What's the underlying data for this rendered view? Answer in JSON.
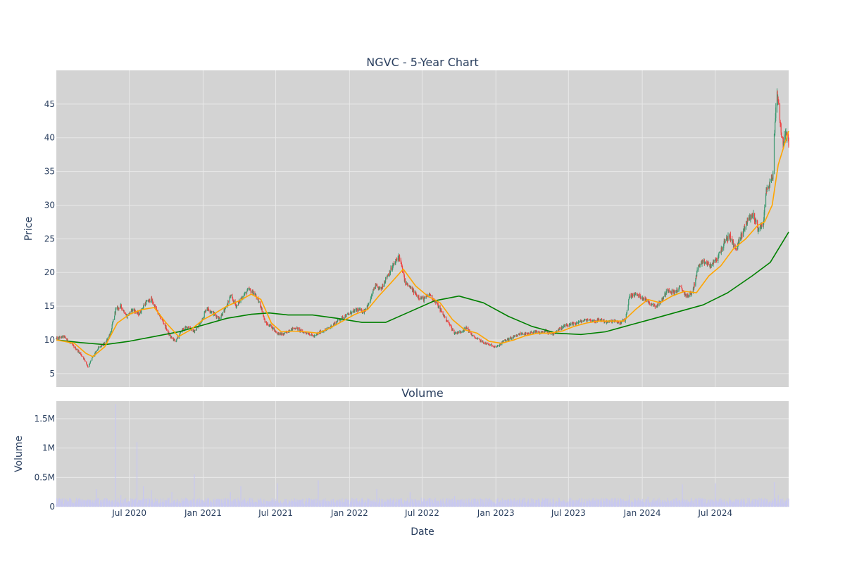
{
  "chart_data": [
    {
      "type": "candlestick",
      "title": "NGVC - 5-Year Chart",
      "ylabel": "Price",
      "ylim": [
        3,
        50
      ],
      "yticks": [
        5,
        10,
        15,
        20,
        25,
        30,
        35,
        40,
        45
      ],
      "yticklabels": [
        "5",
        "10",
        "15",
        "20",
        "25",
        "30",
        "35",
        "40",
        "45"
      ],
      "x_range": [
        "2020-01-01",
        "2024-12-31"
      ],
      "xticks": [
        "2020-07-01",
        "2021-01-01",
        "2021-07-01",
        "2022-01-01",
        "2022-07-01",
        "2023-01-01",
        "2023-07-01",
        "2024-01-01",
        "2024-07-01"
      ],
      "grid": true,
      "colors": {
        "background": "#d3d3d3",
        "grid": "#e8e8e8",
        "up": "#3d9970",
        "down": "#ef4444",
        "ma_short": "#ffa500",
        "ma_long": "#008000",
        "text": "#2a3f5f"
      },
      "price_path": [
        [
          "2020-01-01",
          10.2
        ],
        [
          "2020-01-20",
          10.5
        ],
        [
          "2020-02-10",
          9.2
        ],
        [
          "2020-02-25",
          8.3
        ],
        [
          "2020-03-10",
          7.2
        ],
        [
          "2020-03-20",
          6.0
        ],
        [
          "2020-04-01",
          7.5
        ],
        [
          "2020-04-15",
          8.8
        ],
        [
          "2020-05-01",
          9.5
        ],
        [
          "2020-05-15",
          11.0
        ],
        [
          "2020-05-28",
          14.5
        ],
        [
          "2020-06-10",
          15.0
        ],
        [
          "2020-06-25",
          13.5
        ],
        [
          "2020-07-10",
          14.5
        ],
        [
          "2020-07-25",
          13.8
        ],
        [
          "2020-08-10",
          15.5
        ],
        [
          "2020-08-25",
          16.0
        ],
        [
          "2020-09-10",
          14.0
        ],
        [
          "2020-09-25",
          12.5
        ],
        [
          "2020-10-10",
          10.5
        ],
        [
          "2020-10-25",
          9.8
        ],
        [
          "2020-11-10",
          11.5
        ],
        [
          "2020-11-25",
          12.0
        ],
        [
          "2020-12-10",
          11.2
        ],
        [
          "2020-12-25",
          12.5
        ],
        [
          "2021-01-10",
          14.8
        ],
        [
          "2021-01-25",
          14.0
        ],
        [
          "2021-02-10",
          13.2
        ],
        [
          "2021-02-25",
          14.5
        ],
        [
          "2021-03-10",
          16.5
        ],
        [
          "2021-03-25",
          15.0
        ],
        [
          "2021-04-10",
          16.5
        ],
        [
          "2021-04-25",
          17.5
        ],
        [
          "2021-05-10",
          16.8
        ],
        [
          "2021-05-25",
          15.0
        ],
        [
          "2021-06-05",
          12.5
        ],
        [
          "2021-06-20",
          12.0
        ],
        [
          "2021-07-05",
          11.0
        ],
        [
          "2021-07-20",
          10.8
        ],
        [
          "2021-08-05",
          11.5
        ],
        [
          "2021-08-20",
          11.8
        ],
        [
          "2021-09-05",
          11.2
        ],
        [
          "2021-09-20",
          11.0
        ],
        [
          "2021-10-05",
          10.5
        ],
        [
          "2021-10-20",
          11.2
        ],
        [
          "2021-11-05",
          11.5
        ],
        [
          "2021-11-20",
          12.2
        ],
        [
          "2021-12-05",
          13.0
        ],
        [
          "2021-12-20",
          13.5
        ],
        [
          "2022-01-05",
          14.0
        ],
        [
          "2022-01-20",
          14.5
        ],
        [
          "2022-02-05",
          14.2
        ],
        [
          "2022-02-20",
          15.5
        ],
        [
          "2022-03-05",
          18.0
        ],
        [
          "2022-03-20",
          17.5
        ],
        [
          "2022-04-05",
          19.5
        ],
        [
          "2022-04-20",
          21.0
        ],
        [
          "2022-05-05",
          22.5
        ],
        [
          "2022-05-20",
          18.5
        ],
        [
          "2022-06-05",
          17.5
        ],
        [
          "2022-06-20",
          16.5
        ],
        [
          "2022-07-05",
          16.0
        ],
        [
          "2022-07-20",
          16.8
        ],
        [
          "2022-08-05",
          15.5
        ],
        [
          "2022-08-20",
          14.0
        ],
        [
          "2022-09-05",
          12.5
        ],
        [
          "2022-09-20",
          11.0
        ],
        [
          "2022-10-05",
          11.2
        ],
        [
          "2022-10-20",
          11.8
        ],
        [
          "2022-11-05",
          10.5
        ],
        [
          "2022-11-20",
          10.0
        ],
        [
          "2022-12-05",
          9.5
        ],
        [
          "2022-12-20",
          9.2
        ],
        [
          "2023-01-05",
          9.0
        ],
        [
          "2023-01-20",
          9.8
        ],
        [
          "2023-02-05",
          10.2
        ],
        [
          "2023-02-20",
          10.5
        ],
        [
          "2023-03-05",
          11.0
        ],
        [
          "2023-03-20",
          10.8
        ],
        [
          "2023-04-05",
          11.2
        ],
        [
          "2023-04-20",
          11.0
        ],
        [
          "2023-05-05",
          11.3
        ],
        [
          "2023-05-20",
          10.8
        ],
        [
          "2023-06-05",
          11.5
        ],
        [
          "2023-06-20",
          12.0
        ],
        [
          "2023-07-05",
          12.2
        ],
        [
          "2023-07-20",
          12.5
        ],
        [
          "2023-08-05",
          12.8
        ],
        [
          "2023-08-20",
          13.0
        ],
        [
          "2023-09-05",
          12.8
        ],
        [
          "2023-09-20",
          13.0
        ],
        [
          "2023-10-05",
          12.6
        ],
        [
          "2023-10-20",
          12.8
        ],
        [
          "2023-11-05",
          12.5
        ],
        [
          "2023-11-20",
          13.0
        ],
        [
          "2023-11-30",
          16.5
        ],
        [
          "2023-12-15",
          16.8
        ],
        [
          "2024-01-05",
          16.2
        ],
        [
          "2024-01-20",
          15.5
        ],
        [
          "2024-02-05",
          15.0
        ],
        [
          "2024-02-20",
          16.0
        ],
        [
          "2024-03-05",
          17.5
        ],
        [
          "2024-03-20",
          17.0
        ],
        [
          "2024-04-05",
          17.8
        ],
        [
          "2024-04-20",
          16.5
        ],
        [
          "2024-05-05",
          17.0
        ],
        [
          "2024-05-20",
          21.0
        ],
        [
          "2024-06-05",
          21.5
        ],
        [
          "2024-06-20",
          21.0
        ],
        [
          "2024-07-05",
          22.0
        ],
        [
          "2024-07-20",
          24.0
        ],
        [
          "2024-08-05",
          25.5
        ],
        [
          "2024-08-20",
          23.5
        ],
        [
          "2024-09-05",
          25.5
        ],
        [
          "2024-09-20",
          28.0
        ],
        [
          "2024-10-05",
          28.5
        ],
        [
          "2024-10-15",
          26.5
        ],
        [
          "2024-10-28",
          27.0
        ],
        [
          "2024-11-05",
          32.0
        ],
        [
          "2024-11-15",
          33.5
        ],
        [
          "2024-11-22",
          34.5
        ],
        [
          "2024-11-25",
          40.0
        ],
        [
          "2024-12-01",
          47.0
        ],
        [
          "2024-12-08",
          44.0
        ],
        [
          "2024-12-15",
          39.0
        ],
        [
          "2024-12-22",
          40.5
        ],
        [
          "2024-12-31",
          39.5
        ]
      ],
      "ma_short": [
        [
          "2020-01-01",
          10.0
        ],
        [
          "2020-02-15",
          9.5
        ],
        [
          "2020-03-15",
          8.0
        ],
        [
          "2020-04-01",
          7.5
        ],
        [
          "2020-05-01",
          9.0
        ],
        [
          "2020-06-01",
          12.5
        ],
        [
          "2020-07-01",
          13.8
        ],
        [
          "2020-08-01",
          14.5
        ],
        [
          "2020-09-01",
          14.8
        ],
        [
          "2020-10-01",
          12.5
        ],
        [
          "2020-11-01",
          10.5
        ],
        [
          "2020-12-01",
          11.5
        ],
        [
          "2021-01-01",
          13.0
        ],
        [
          "2021-02-01",
          14.0
        ],
        [
          "2021-03-01",
          15.0
        ],
        [
          "2021-04-01",
          15.8
        ],
        [
          "2021-05-01",
          16.8
        ],
        [
          "2021-05-25",
          16.0
        ],
        [
          "2021-06-20",
          12.5
        ],
        [
          "2021-07-15",
          11.2
        ],
        [
          "2021-08-15",
          11.3
        ],
        [
          "2021-09-15",
          11.2
        ],
        [
          "2021-10-15",
          11.0
        ],
        [
          "2021-11-15",
          11.8
        ],
        [
          "2021-12-15",
          12.8
        ],
        [
          "2022-01-15",
          13.8
        ],
        [
          "2022-02-15",
          14.5
        ],
        [
          "2022-03-15",
          16.5
        ],
        [
          "2022-04-15",
          18.5
        ],
        [
          "2022-05-15",
          20.5
        ],
        [
          "2022-06-15",
          18.0
        ],
        [
          "2022-07-15",
          16.5
        ],
        [
          "2022-08-15",
          15.5
        ],
        [
          "2022-09-15",
          13.0
        ],
        [
          "2022-10-15",
          11.5
        ],
        [
          "2022-11-15",
          11.0
        ],
        [
          "2022-12-15",
          9.8
        ],
        [
          "2023-01-15",
          9.5
        ],
        [
          "2023-02-15",
          10.0
        ],
        [
          "2023-03-15",
          10.6
        ],
        [
          "2023-04-15",
          11.0
        ],
        [
          "2023-05-15",
          11.0
        ],
        [
          "2023-06-15",
          11.3
        ],
        [
          "2023-07-15",
          12.0
        ],
        [
          "2023-08-15",
          12.5
        ],
        [
          "2023-09-15",
          12.8
        ],
        [
          "2023-10-15",
          12.8
        ],
        [
          "2023-11-15",
          12.8
        ],
        [
          "2023-12-15",
          14.5
        ],
        [
          "2024-01-15",
          16.0
        ],
        [
          "2024-02-15",
          15.5
        ],
        [
          "2024-03-15",
          16.5
        ],
        [
          "2024-04-15",
          17.2
        ],
        [
          "2024-05-15",
          17.0
        ],
        [
          "2024-06-15",
          19.5
        ],
        [
          "2024-07-15",
          21.0
        ],
        [
          "2024-08-15",
          23.5
        ],
        [
          "2024-09-15",
          25.0
        ],
        [
          "2024-10-15",
          27.0
        ],
        [
          "2024-11-01",
          27.5
        ],
        [
          "2024-11-20",
          30.0
        ],
        [
          "2024-12-05",
          36.0
        ],
        [
          "2024-12-31",
          41.0
        ]
      ],
      "ma_long": [
        [
          "2020-01-01",
          10.0
        ],
        [
          "2020-03-01",
          9.6
        ],
        [
          "2020-05-01",
          9.3
        ],
        [
          "2020-07-01",
          9.8
        ],
        [
          "2020-09-01",
          10.5
        ],
        [
          "2020-11-01",
          11.2
        ],
        [
          "2021-01-01",
          12.2
        ],
        [
          "2021-03-01",
          13.2
        ],
        [
          "2021-05-01",
          13.8
        ],
        [
          "2021-06-15",
          14.0
        ],
        [
          "2021-08-01",
          13.7
        ],
        [
          "2021-10-01",
          13.7
        ],
        [
          "2021-12-01",
          13.2
        ],
        [
          "2022-02-01",
          12.6
        ],
        [
          "2022-04-01",
          12.6
        ],
        [
          "2022-06-01",
          14.2
        ],
        [
          "2022-08-01",
          15.8
        ],
        [
          "2022-10-01",
          16.5
        ],
        [
          "2022-12-01",
          15.5
        ],
        [
          "2023-02-01",
          13.5
        ],
        [
          "2023-04-01",
          12.0
        ],
        [
          "2023-06-01",
          11.0
        ],
        [
          "2023-08-01",
          10.8
        ],
        [
          "2023-10-01",
          11.2
        ],
        [
          "2023-12-01",
          12.2
        ],
        [
          "2024-02-01",
          13.2
        ],
        [
          "2024-04-01",
          14.2
        ],
        [
          "2024-06-01",
          15.2
        ],
        [
          "2024-08-01",
          17.0
        ],
        [
          "2024-10-01",
          19.5
        ],
        [
          "2024-11-15",
          21.5
        ],
        [
          "2024-12-31",
          26.0
        ]
      ]
    },
    {
      "type": "bar",
      "title": "Volume",
      "xlabel": "Date",
      "ylabel": "Volume",
      "ylim": [
        0,
        1800000
      ],
      "yticks": [
        0,
        500000,
        1000000,
        1500000
      ],
      "yticklabels": [
        "0",
        "0.5M",
        "1M",
        "1.5M"
      ],
      "x_range": [
        "2020-01-01",
        "2024-12-31"
      ],
      "xticks": [
        "2020-07-01",
        "2021-01-01",
        "2021-07-01",
        "2022-01-01",
        "2022-07-01",
        "2023-01-01",
        "2023-07-01",
        "2024-01-01",
        "2024-07-01"
      ],
      "xticklabels": [
        "Jul 2020",
        "Jan 2021",
        "Jul 2021",
        "Jan 2022",
        "Jul 2022",
        "Jan 2023",
        "Jul 2023",
        "Jan 2024",
        "Jul 2024"
      ],
      "grid": true,
      "colors": {
        "background": "#d3d3d3",
        "grid": "#e8e8e8",
        "bar": "#c8c8f0",
        "text": "#2a3f5f"
      },
      "baseline_volume": 100000,
      "spikes": [
        [
          "2020-02-20",
          150000
        ],
        [
          "2020-03-15",
          180000
        ],
        [
          "2020-04-10",
          300000
        ],
        [
          "2020-05-28",
          1750000
        ],
        [
          "2020-06-10",
          200000
        ],
        [
          "2020-07-20",
          1100000
        ],
        [
          "2020-08-05",
          350000
        ],
        [
          "2020-08-25",
          280000
        ],
        [
          "2020-10-15",
          250000
        ],
        [
          "2020-12-10",
          550000
        ],
        [
          "2020-12-20",
          300000
        ],
        [
          "2021-03-10",
          250000
        ],
        [
          "2021-04-05",
          350000
        ],
        [
          "2021-06-05",
          320000
        ],
        [
          "2021-07-05",
          400000
        ],
        [
          "2021-10-15",
          450000
        ],
        [
          "2022-03-10",
          300000
        ],
        [
          "2022-04-10",
          320000
        ],
        [
          "2022-06-01",
          250000
        ],
        [
          "2022-09-20",
          180000
        ],
        [
          "2023-01-01",
          150000
        ],
        [
          "2023-11-30",
          200000
        ],
        [
          "2024-01-15",
          170000
        ],
        [
          "2024-03-10",
          220000
        ],
        [
          "2024-04-10",
          380000
        ],
        [
          "2024-07-01",
          400000
        ],
        [
          "2024-11-25",
          420000
        ],
        [
          "2024-12-05",
          200000
        ]
      ]
    }
  ]
}
